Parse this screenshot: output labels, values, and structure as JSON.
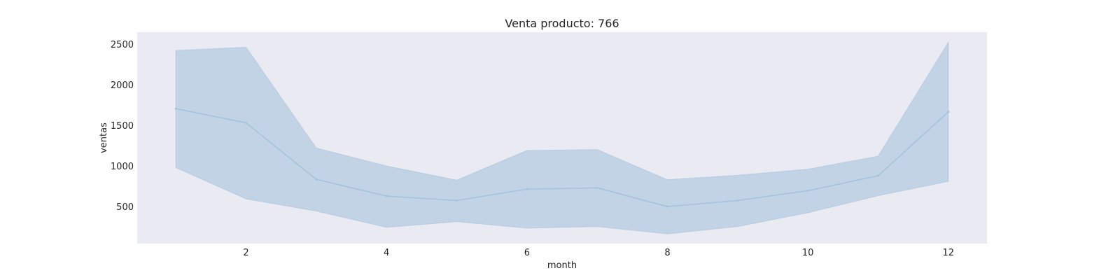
{
  "chart_data": {
    "type": "line",
    "title": "Venta producto: 766",
    "xlabel": "month",
    "ylabel": "ventas",
    "x": [
      1,
      2,
      3,
      4,
      5,
      6,
      7,
      8,
      9,
      10,
      11,
      12
    ],
    "xlim": [
      0.45,
      12.55
    ],
    "ylim": [
      50,
      2650
    ],
    "xticks": [
      2,
      4,
      6,
      8,
      10,
      12
    ],
    "yticks": [
      500,
      1000,
      1500,
      2000,
      2500
    ],
    "grid": false,
    "series": [
      {
        "values": [
          1710,
          1535,
          840,
          635,
          580,
          720,
          735,
          505,
          580,
          700,
          885,
          1670
        ],
        "ci_lower": [
          985,
          600,
          450,
          250,
          320,
          240,
          260,
          170,
          260,
          430,
          640,
          815
        ],
        "ci_upper": [
          2425,
          2465,
          1225,
          1005,
          830,
          1195,
          1205,
          835,
          890,
          965,
          1125,
          2525
        ]
      }
    ],
    "colors": {
      "line": "#a3c2dc",
      "band": "#c1d3e5",
      "plot_background": "#eaeaf2",
      "text": "#262626"
    }
  }
}
